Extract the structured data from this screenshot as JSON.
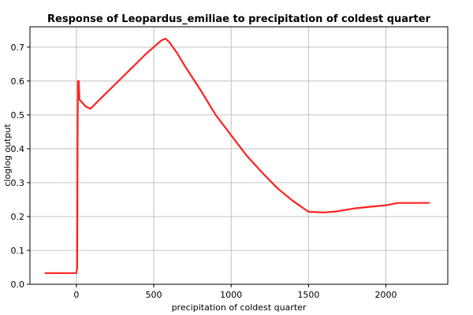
{
  "chart_data": {
    "type": "line",
    "title": "Response of Leopardus_emiliae to precipitation of coldest quarter",
    "xlabel": "precipitation of coldest quarter",
    "ylabel": "cloglog output",
    "xlim": [
      -300,
      2400
    ],
    "ylim": [
      0,
      0.76
    ],
    "xticks": [
      0,
      500,
      1000,
      1500,
      2000
    ],
    "yticks": [
      0.0,
      0.1,
      0.2,
      0.3,
      0.4,
      0.5,
      0.6,
      0.7
    ],
    "xtick_labels": [
      "0",
      "500",
      "1000",
      "1500",
      "2000"
    ],
    "ytick_labels": [
      "0.0",
      "0.1",
      "0.2",
      "0.3",
      "0.4",
      "0.5",
      "0.6",
      "0.7"
    ],
    "grid": true,
    "line_color": "#ff2020",
    "series": [
      {
        "x": [
          -200,
          -100,
          0,
          5,
          8,
          10,
          15,
          20,
          40,
          60,
          90,
          150,
          250,
          350,
          450,
          500,
          550,
          575,
          600,
          650,
          700,
          800,
          900,
          1000,
          1100,
          1200,
          1300,
          1400,
          1500,
          1600,
          1680,
          1720,
          1800,
          1900,
          2000,
          2080,
          2280
        ],
        "y": [
          0.033,
          0.033,
          0.033,
          0.05,
          0.45,
          0.6,
          0.6,
          0.545,
          0.535,
          0.525,
          0.518,
          0.545,
          0.59,
          0.635,
          0.68,
          0.7,
          0.72,
          0.725,
          0.715,
          0.683,
          0.645,
          0.575,
          0.5,
          0.44,
          0.38,
          0.33,
          0.283,
          0.246,
          0.214,
          0.212,
          0.215,
          0.218,
          0.224,
          0.229,
          0.233,
          0.24,
          0.24
        ]
      }
    ]
  }
}
